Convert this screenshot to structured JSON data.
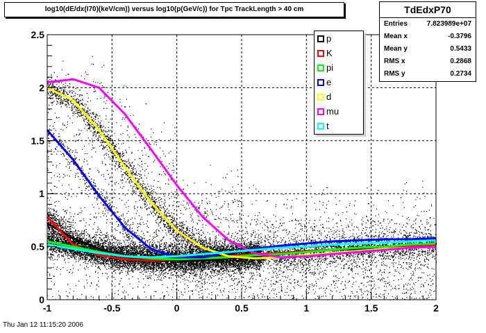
{
  "title": "log10(dE/dx(I70)(keV/cm)) versus log10(p(GeV/c)) for Tpc TrackLength > 40 cm",
  "stats": {
    "name": "TdEdxP70",
    "rows": [
      {
        "label": "Entries",
        "value": "7.823989e+07"
      },
      {
        "label": "Mean x",
        "value": "-0.3796"
      },
      {
        "label": "Mean y",
        "value": "0.5433"
      },
      {
        "label": "RMS x",
        "value": "0.2868"
      },
      {
        "label": "RMS y",
        "value": "0.2734"
      }
    ]
  },
  "timestamp": "Thu Jan 12 11:15:20 2006",
  "chart_data": {
    "type": "scatter",
    "title": "log10(dE/dx(I70)(keV/cm)) versus log10(p(GeV/c)) for Tpc TrackLength > 40 cm",
    "xlim": [
      -1,
      2
    ],
    "ylim": [
      0,
      2.5
    ],
    "x_ticks": [
      -1,
      -0.5,
      0,
      0.5,
      1,
      1.5,
      2
    ],
    "x_tick_labels": [
      "-1",
      "-0.5",
      "0",
      "0.5",
      "1",
      "1.5",
      "2"
    ],
    "y_ticks": [
      0,
      0.5,
      1,
      1.5,
      2,
      2.5
    ],
    "y_tick_labels": [
      "0",
      "0.5",
      "1",
      "1.5",
      "2",
      "2.5"
    ],
    "grid": true,
    "legend_position": "top-right",
    "series": [
      {
        "name": "p",
        "color": "#000000",
        "x": [
          -1.0,
          -0.8,
          -0.6,
          -0.4,
          -0.2,
          0.0,
          0.2,
          0.4,
          0.6,
          0.8,
          1.0,
          1.2,
          1.4,
          1.6,
          1.8,
          2.0
        ],
        "y": [
          0.72,
          0.58,
          0.48,
          0.41,
          0.38,
          0.37,
          0.37,
          0.39,
          0.41,
          0.43,
          0.45,
          0.47,
          0.48,
          0.5,
          0.51,
          0.52
        ]
      },
      {
        "name": "K",
        "color": "#ff0000",
        "x": [
          -1.0,
          -0.8,
          -0.6,
          -0.4,
          -0.2,
          0.0,
          0.2,
          0.4,
          0.6,
          0.8,
          1.0,
          1.2,
          1.4,
          1.6,
          1.8,
          2.0
        ],
        "y": [
          0.78,
          0.52,
          0.42,
          0.38,
          0.37,
          0.38,
          0.39,
          0.41,
          0.43,
          0.44,
          0.46,
          0.47,
          0.49,
          0.5,
          0.51,
          0.52
        ]
      },
      {
        "name": "pi",
        "color": "#00ff00",
        "x": [
          -1.0,
          -0.8,
          -0.6,
          -0.4,
          -0.2,
          0.0,
          0.2,
          0.4,
          0.6,
          0.8,
          1.0,
          1.2,
          1.4,
          1.6,
          1.8,
          2.0
        ],
        "y": [
          0.55,
          0.5,
          0.45,
          0.41,
          0.39,
          0.38,
          0.39,
          0.4,
          0.42,
          0.43,
          0.45,
          0.47,
          0.49,
          0.5,
          0.52,
          0.53
        ]
      },
      {
        "name": "e",
        "color": "#0000ff",
        "x": [
          -1.0,
          -0.8,
          -0.6,
          -0.4,
          -0.2,
          0.0,
          0.2,
          0.4,
          0.6,
          0.8,
          1.0,
          1.2,
          1.4,
          1.6,
          1.8,
          2.0
        ],
        "y": [
          1.6,
          1.32,
          0.98,
          0.68,
          0.48,
          0.4,
          0.4,
          0.44,
          0.48,
          0.51,
          0.53,
          0.55,
          0.56,
          0.57,
          0.57,
          0.58
        ]
      },
      {
        "name": "d",
        "color": "#ffff00",
        "x": [
          -1.0,
          -0.8,
          -0.6,
          -0.4,
          -0.2,
          0.0,
          0.2,
          0.4,
          0.6,
          0.8,
          1.0,
          1.2,
          1.4,
          1.6,
          1.8,
          2.0
        ],
        "y": [
          2.0,
          1.88,
          1.6,
          1.25,
          0.92,
          0.65,
          0.49,
          0.41,
          0.39,
          0.4,
          0.42,
          0.44,
          0.46,
          0.48,
          0.49,
          0.5
        ]
      },
      {
        "name": "mu",
        "color": "#ff00ff",
        "x": [
          -1.0,
          -0.8,
          -0.6,
          -0.4,
          -0.2,
          0.0,
          0.2,
          0.4,
          0.6,
          0.8,
          1.0,
          1.2,
          1.4,
          1.6,
          1.8,
          2.0
        ],
        "y": [
          2.05,
          2.08,
          2.0,
          1.75,
          1.42,
          1.08,
          0.78,
          0.56,
          0.44,
          0.4,
          0.41,
          0.43,
          0.45,
          0.47,
          0.49,
          0.5
        ]
      },
      {
        "name": "t",
        "color": "#00ffff",
        "x": [
          -1.0,
          -0.8,
          -0.6,
          -0.4,
          -0.2,
          0.0,
          0.2,
          0.4,
          0.6,
          0.8,
          1.0,
          1.2,
          1.4,
          1.6,
          1.8,
          2.0
        ],
        "y": [
          0.52,
          0.48,
          0.44,
          0.41,
          0.4,
          0.41,
          0.43,
          0.45,
          0.47,
          0.49,
          0.5,
          0.52,
          0.53,
          0.54,
          0.55,
          0.56
        ]
      }
    ]
  }
}
